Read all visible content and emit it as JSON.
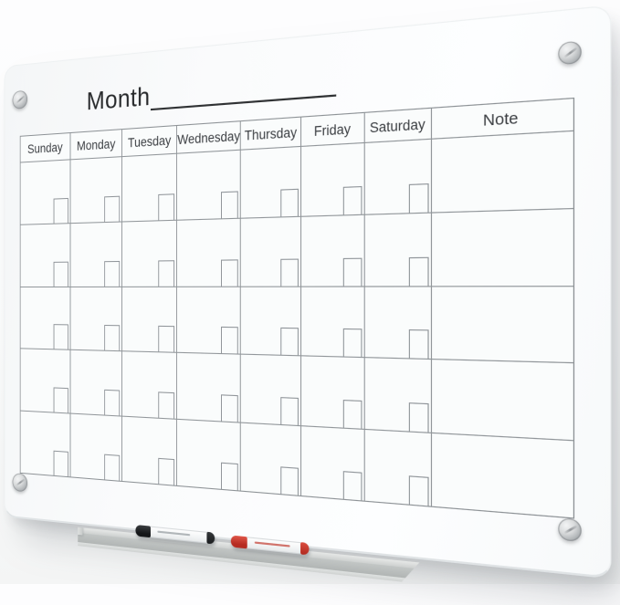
{
  "scene": {
    "object": "wall-mounted glass dry-erase monthly calendar board, photographed at an angle with the right side closer to the camera"
  },
  "calendar": {
    "title": "Month",
    "headers": [
      "Sunday",
      "Monday",
      "Tuesday",
      "Wednesday",
      "Thursday",
      "Friday",
      "Saturday"
    ],
    "note_header": "Note",
    "week_rows": 5,
    "date_box_in_each_day_cell": true
  },
  "hardware": {
    "standoff_screws": 4,
    "tray": {
      "description": "aluminum marker tray along bottom left",
      "color": "#c2c6c5"
    },
    "markers": [
      {
        "label": "dry-erase marker with black cap",
        "cap_color": "#1a1c1e",
        "body_color": "#f4f5f6"
      },
      {
        "label": "dry-erase marker with red cap",
        "cap_color": "#c0301f",
        "body_color": "#f4f5f6"
      }
    ]
  },
  "colors": {
    "wall": "#fcfcfd",
    "glass": "#fafbfc",
    "grid_line": "#91969a",
    "ink": "#27292b"
  }
}
